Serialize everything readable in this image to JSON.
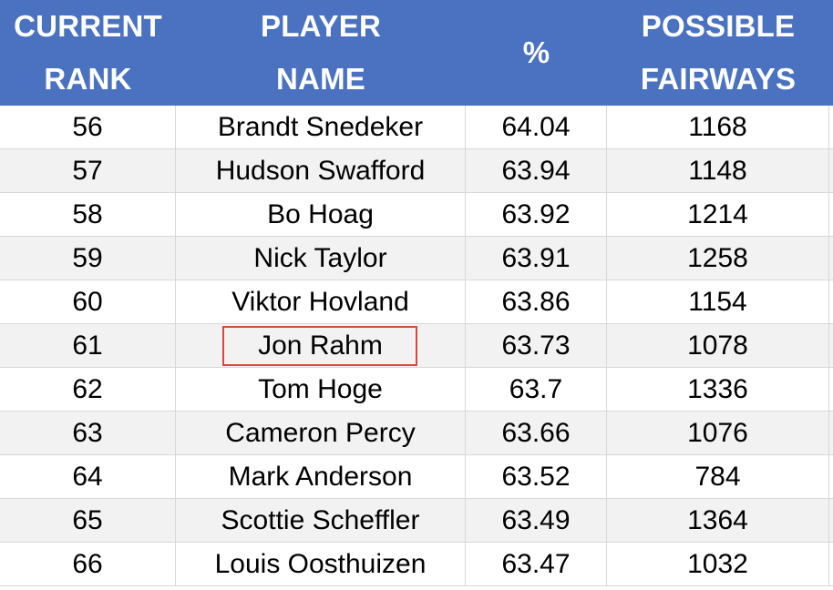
{
  "header": {
    "rank_line1": "CURRENT",
    "rank_line2": "RANK",
    "name_line1": "PLAYER",
    "name_line2": "NAME",
    "pct": "%",
    "fair_line1": "POSSIBLE",
    "fair_line2": "FAIRWAYS"
  },
  "colors": {
    "header_bg": "#4a72c0",
    "highlight_border": "#d9483b",
    "alt_row": "#f2f2f2"
  },
  "rows": [
    {
      "rank": "56",
      "name": "Brandt Snedeker",
      "pct": "64.04",
      "fairways": "1168"
    },
    {
      "rank": "57",
      "name": "Hudson Swafford",
      "pct": "63.94",
      "fairways": "1148"
    },
    {
      "rank": "58",
      "name": "Bo Hoag",
      "pct": "63.92",
      "fairways": "1214"
    },
    {
      "rank": "59",
      "name": "Nick Taylor",
      "pct": "63.91",
      "fairways": "1258"
    },
    {
      "rank": "60",
      "name": "Viktor Hovland",
      "pct": "63.86",
      "fairways": "1154"
    },
    {
      "rank": "61",
      "name": "Jon Rahm",
      "pct": "63.73",
      "fairways": "1078",
      "highlighted": true
    },
    {
      "rank": "62",
      "name": "Tom Hoge",
      "pct": "63.7",
      "fairways": "1336"
    },
    {
      "rank": "63",
      "name": "Cameron Percy",
      "pct": "63.66",
      "fairways": "1076"
    },
    {
      "rank": "64",
      "name": "Mark Anderson",
      "pct": "63.52",
      "fairways": "784"
    },
    {
      "rank": "65",
      "name": "Scottie Scheffler",
      "pct": "63.49",
      "fairways": "1364"
    },
    {
      "rank": "66",
      "name": "Louis Oosthuizen",
      "pct": "63.47",
      "fairways": "1032"
    }
  ]
}
